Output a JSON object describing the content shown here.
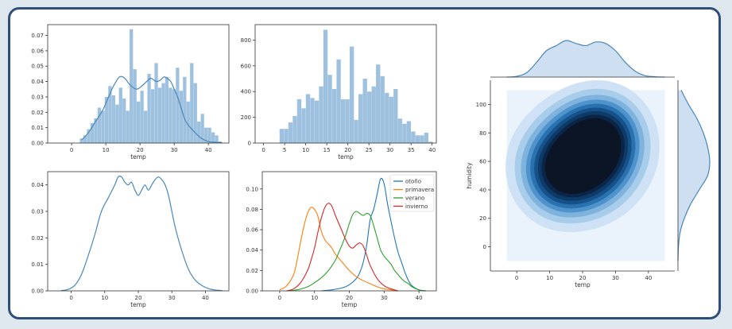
{
  "colors": {
    "hist": "#9dc1de",
    "line": "#4a87b8",
    "otono": "#1f77b4",
    "primavera": "#ff7f0e",
    "verano": "#2ca02c",
    "invierno": "#d62728",
    "kde_levels": [
      "#eaf3fc",
      "#cfe2f5",
      "#a8cdeb",
      "#7fb3de",
      "#4f93cc",
      "#2a71b0",
      "#175189",
      "#0d3a66",
      "#0a2547",
      "#0b1526"
    ],
    "frame": "#2f4f7a",
    "background": "#dfe7ef"
  },
  "chart_data": [
    {
      "id": "hist_kde_density",
      "type": "bar",
      "xlabel": "temp",
      "ylabel": "",
      "xlim": [
        -7,
        46
      ],
      "ylim": [
        0,
        0.077
      ],
      "xticks": [
        0,
        10,
        20,
        30,
        40
      ],
      "yticks": [
        0.0,
        0.01,
        0.02,
        0.03,
        0.04,
        0.05,
        0.06,
        0.07
      ],
      "ytick_labels": [
        "0.00",
        "0.01",
        "0.02",
        "0.03",
        "0.04",
        "0.05",
        "0.06",
        "0.07"
      ],
      "bin_width": 1.04,
      "bin_start": 2.4,
      "values": [
        0.003,
        0.005,
        0.009,
        0.013,
        0.016,
        0.023,
        0.021,
        0.03,
        0.037,
        0.031,
        0.025,
        0.036,
        0.029,
        0.021,
        0.074,
        0.048,
        0.027,
        0.034,
        0.021,
        0.045,
        0.035,
        0.052,
        0.036,
        0.039,
        0.043,
        0.036,
        0.035,
        0.049,
        0.034,
        0.043,
        0.027,
        0.052,
        0.039,
        0.014,
        0.019,
        0.01,
        0.01,
        0.007,
        0.005,
        0.001
      ],
      "kde_x": [
        3,
        5,
        7,
        9,
        11,
        12,
        13,
        14,
        15,
        16,
        17,
        19,
        21,
        23,
        24,
        25,
        26,
        27,
        28,
        29,
        30,
        31,
        32,
        33,
        34,
        36,
        38,
        40,
        42,
        44
      ],
      "kde_y": [
        0.002,
        0.007,
        0.014,
        0.021,
        0.031,
        0.036,
        0.04,
        0.043,
        0.043,
        0.041,
        0.038,
        0.035,
        0.038,
        0.042,
        0.041,
        0.04,
        0.041,
        0.043,
        0.042,
        0.04,
        0.035,
        0.03,
        0.023,
        0.016,
        0.012,
        0.007,
        0.003,
        0.001,
        0.0005,
        0.0002
      ]
    },
    {
      "id": "hist_counts",
      "type": "bar",
      "xlabel": "temp",
      "ylabel": "",
      "xlim": [
        -2,
        41
      ],
      "ylim": [
        0,
        920
      ],
      "xticks": [
        0,
        5,
        10,
        15,
        20,
        25,
        30,
        35,
        40
      ],
      "yticks": [
        0,
        200,
        400,
        600,
        800
      ],
      "ytick_labels": [
        "0",
        "200",
        "400",
        "600",
        "800"
      ],
      "bin_width": 1.04,
      "bin_start": 3.8,
      "values": [
        110,
        110,
        160,
        210,
        340,
        270,
        380,
        350,
        330,
        440,
        880,
        530,
        420,
        650,
        340,
        340,
        750,
        180,
        380,
        500,
        400,
        440,
        610,
        520,
        390,
        360,
        420,
        190,
        150,
        170,
        90,
        60,
        60,
        80,
        10
      ],
      "kde_x": [],
      "kde_y": []
    },
    {
      "id": "kde_overall",
      "type": "line",
      "xlabel": "temp",
      "ylabel": "",
      "xlim": [
        -7,
        47
      ],
      "ylim": [
        0,
        0.045
      ],
      "xticks": [
        0,
        10,
        20,
        30,
        40
      ],
      "yticks": [
        0.0,
        0.01,
        0.02,
        0.03,
        0.04
      ],
      "ytick_labels": [
        "0.00",
        "0.01",
        "0.02",
        "0.03",
        "0.04"
      ],
      "series": [
        {
          "x": [
            -3,
            -1,
            1,
            3,
            5,
            7,
            9,
            11,
            13,
            14,
            15,
            16,
            17,
            18,
            19,
            20,
            21,
            22,
            23,
            24,
            25,
            26,
            27,
            28,
            29,
            30,
            31,
            33,
            35,
            37,
            39,
            41,
            43,
            45
          ],
          "y": [
            0.0001,
            0.0005,
            0.002,
            0.006,
            0.013,
            0.021,
            0.03,
            0.035,
            0.04,
            0.043,
            0.043,
            0.041,
            0.04,
            0.041,
            0.038,
            0.036,
            0.038,
            0.04,
            0.038,
            0.04,
            0.042,
            0.043,
            0.042,
            0.04,
            0.036,
            0.03,
            0.024,
            0.015,
            0.008,
            0.004,
            0.002,
            0.0008,
            0.0003,
            0.0001
          ]
        }
      ]
    },
    {
      "id": "kde_by_season",
      "type": "line",
      "xlabel": "temp",
      "ylabel": "",
      "xlim": [
        -5,
        45
      ],
      "ylim": [
        0,
        0.117
      ],
      "xticks": [
        0,
        10,
        20,
        30,
        40
      ],
      "yticks": [
        0.0,
        0.02,
        0.04,
        0.06,
        0.08,
        0.1
      ],
      "ytick_labels": [
        "0.00",
        "0.02",
        "0.04",
        "0.06",
        "0.08",
        "0.10"
      ],
      "legend": "top-right",
      "series": [
        {
          "name": "otoño",
          "color": "#1f77b4",
          "x": [
            12,
            15,
            18,
            20,
            22,
            23,
            24,
            25,
            26,
            27,
            28,
            29,
            30,
            31,
            32,
            33,
            34,
            35,
            36,
            37,
            38,
            40,
            42
          ],
          "y": [
            0,
            0.001,
            0.003,
            0.006,
            0.012,
            0.018,
            0.028,
            0.045,
            0.07,
            0.08,
            0.095,
            0.11,
            0.105,
            0.085,
            0.068,
            0.052,
            0.038,
            0.028,
            0.018,
            0.01,
            0.005,
            0.001,
            0
          ]
        },
        {
          "name": "primavera",
          "color": "#ff7f0e",
          "x": [
            0,
            2,
            4,
            5,
            6,
            7,
            8,
            9,
            10,
            11,
            12,
            13,
            14,
            15,
            16,
            18,
            20,
            22,
            24,
            26,
            28,
            30,
            32,
            34
          ],
          "y": [
            0.001,
            0.005,
            0.016,
            0.03,
            0.048,
            0.064,
            0.076,
            0.082,
            0.08,
            0.073,
            0.058,
            0.05,
            0.046,
            0.042,
            0.036,
            0.028,
            0.02,
            0.014,
            0.01,
            0.007,
            0.004,
            0.002,
            0.001,
            0
          ]
        },
        {
          "name": "verano",
          "color": "#2ca02c",
          "x": [
            2,
            5,
            8,
            10,
            12,
            14,
            16,
            17,
            18,
            19,
            20,
            21,
            22,
            23,
            24,
            25,
            26,
            27,
            28,
            29,
            30,
            31,
            32,
            33,
            34,
            35,
            36,
            37,
            38,
            40,
            42
          ],
          "y": [
            0,
            0.001,
            0.004,
            0.008,
            0.013,
            0.02,
            0.03,
            0.038,
            0.046,
            0.055,
            0.066,
            0.075,
            0.078,
            0.076,
            0.074,
            0.076,
            0.074,
            0.064,
            0.052,
            0.04,
            0.034,
            0.03,
            0.026,
            0.02,
            0.016,
            0.012,
            0.009,
            0.007,
            0.004,
            0.001,
            0
          ]
        },
        {
          "name": "invierno",
          "color": "#d62728",
          "x": [
            2,
            4,
            6,
            8,
            9,
            10,
            11,
            12,
            13,
            14,
            15,
            16,
            17,
            18,
            19,
            20,
            21,
            22,
            23,
            24,
            25,
            26,
            28,
            30,
            32,
            34
          ],
          "y": [
            0,
            0.002,
            0.008,
            0.02,
            0.03,
            0.042,
            0.058,
            0.072,
            0.082,
            0.086,
            0.083,
            0.074,
            0.066,
            0.058,
            0.05,
            0.044,
            0.042,
            0.045,
            0.047,
            0.044,
            0.035,
            0.025,
            0.012,
            0.005,
            0.002,
            0
          ]
        }
      ]
    },
    {
      "id": "joint_kde",
      "type": "heatmap",
      "xlabel": "temp",
      "ylabel": "humidity",
      "xlim": [
        -8,
        48
      ],
      "ylim": [
        -17,
        117
      ],
      "xticks": [
        0,
        10,
        20,
        30,
        40
      ],
      "yticks": [
        0,
        20,
        40,
        60,
        80,
        100
      ],
      "modes": [
        {
          "x": 13,
          "y": 50,
          "weight": 1.0
        },
        {
          "x": 27,
          "y": 78,
          "weight": 0.95
        },
        {
          "x": 20,
          "y": 75,
          "weight": 0.5
        },
        {
          "x": 23,
          "y": 50,
          "weight": 0.45
        }
      ],
      "marginal_x": {
        "x": [
          -3,
          0,
          3,
          6,
          9,
          12,
          15,
          18,
          21,
          24,
          27,
          30,
          33,
          36,
          39,
          42,
          45
        ],
        "y": [
          0.0,
          0.001,
          0.006,
          0.02,
          0.036,
          0.043,
          0.05,
          0.046,
          0.043,
          0.048,
          0.046,
          0.036,
          0.02,
          0.008,
          0.002,
          0.0005,
          0.0
        ]
      },
      "marginal_y": {
        "y": [
          -10,
          0,
          10,
          20,
          30,
          40,
          50,
          60,
          70,
          80,
          90,
          100,
          110
        ],
        "x": [
          0.0,
          0.0005,
          0.002,
          0.006,
          0.012,
          0.02,
          0.028,
          0.03,
          0.028,
          0.024,
          0.018,
          0.01,
          0.003
        ]
      }
    }
  ]
}
